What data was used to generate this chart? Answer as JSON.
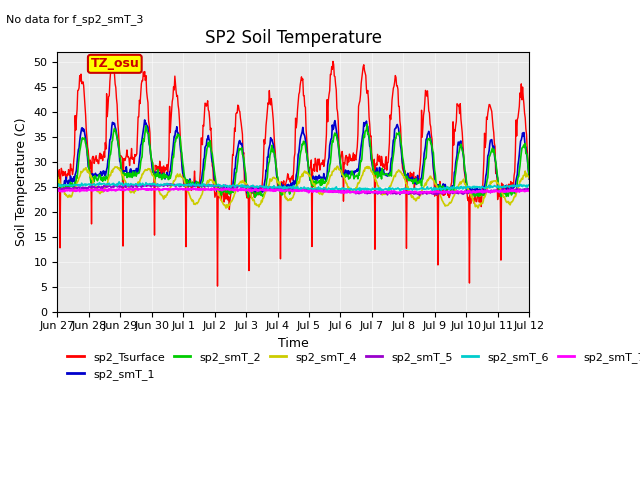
{
  "title": "SP2 Soil Temperature",
  "subtitle": "No data for f_sp2_smT_3",
  "xlabel": "Time",
  "ylabel": "Soil Temperature (C)",
  "ylim": [
    0,
    52
  ],
  "yticks": [
    0,
    5,
    10,
    15,
    20,
    25,
    30,
    35,
    40,
    45,
    50
  ],
  "date_labels": [
    "Jun 27",
    "Jun 28",
    "Jun 29",
    "Jun 30",
    "Jul 1",
    "Jul 2",
    "Jul 3",
    "Jul 4",
    "Jul 5",
    "Jul 6",
    "Jul 7",
    "Jul 8",
    "Jul 9",
    "Jul 10",
    "Jul 11",
    "Jul 12"
  ],
  "tz_label": "TZ_osu",
  "tz_box_color": "#ffff00",
  "tz_text_color": "#cc0000",
  "bg_color": "#e8e8e8",
  "series_colors": {
    "sp2_Tsurface": "#ff0000",
    "sp2_smT_1": "#0000cc",
    "sp2_smT_2": "#00cc00",
    "sp2_smT_4": "#cccc00",
    "sp2_smT_5": "#9900cc",
    "sp2_smT_6": "#00cccc",
    "sp2_smT_7": "#ff00ff"
  },
  "n_days": 15,
  "points_per_day": 48
}
